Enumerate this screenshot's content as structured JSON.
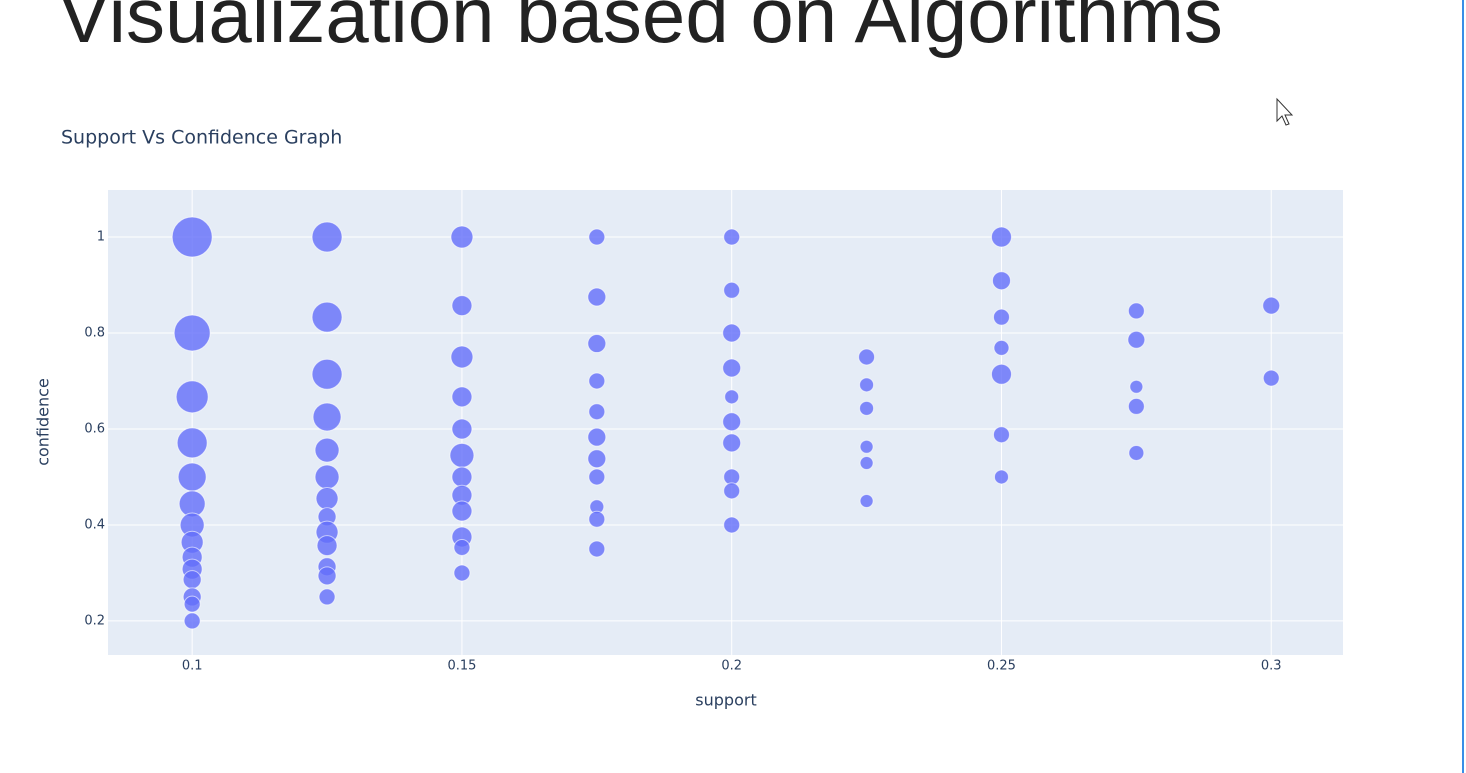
{
  "heading": "Visualization based on Algorithms",
  "chart_data": {
    "type": "scatter",
    "title": "Support Vs Confidence Graph",
    "x_label": "support",
    "y_label": "confidence",
    "color": "#636efa",
    "grid": true,
    "xlim": [
      0.0844,
      0.3133
    ],
    "ylim": [
      0.129,
      1.098
    ],
    "xticks": [
      0.1,
      0.15,
      0.2,
      0.25,
      0.3
    ],
    "yticks": [
      0.2,
      0.4,
      0.6,
      0.8,
      1
    ],
    "x": [
      0.1,
      0.1,
      0.1,
      0.1,
      0.1,
      0.1,
      0.1,
      0.1,
      0.1,
      0.1,
      0.1,
      0.1,
      0.1,
      0.1,
      0.125,
      0.125,
      0.125,
      0.125,
      0.125,
      0.125,
      0.125,
      0.125,
      0.125,
      0.125,
      0.125,
      0.125,
      0.125,
      0.15,
      0.15,
      0.15,
      0.15,
      0.15,
      0.15,
      0.15,
      0.15,
      0.15,
      0.15,
      0.15,
      0.15,
      0.175,
      0.175,
      0.175,
      0.175,
      0.175,
      0.175,
      0.175,
      0.175,
      0.175,
      0.175,
      0.175,
      0.2,
      0.2,
      0.2,
      0.2,
      0.2,
      0.2,
      0.2,
      0.2,
      0.2,
      0.2,
      0.225,
      0.225,
      0.225,
      0.225,
      0.225,
      0.225,
      0.25,
      0.25,
      0.25,
      0.25,
      0.25,
      0.25,
      0.25,
      0.275,
      0.275,
      0.275,
      0.275,
      0.275,
      0.3,
      0.3
    ],
    "y": [
      1.0,
      0.8,
      0.667,
      0.571,
      0.5,
      0.444,
      0.4,
      0.364,
      0.333,
      0.308,
      0.286,
      0.25,
      0.235,
      0.2,
      1.0,
      0.833,
      0.714,
      0.625,
      0.556,
      0.5,
      0.455,
      0.417,
      0.385,
      0.357,
      0.313,
      0.294,
      0.25,
      1.0,
      0.857,
      0.75,
      0.667,
      0.6,
      0.545,
      0.5,
      0.462,
      0.429,
      0.375,
      0.353,
      0.3,
      1.0,
      0.875,
      0.778,
      0.7,
      0.636,
      0.583,
      0.538,
      0.5,
      0.438,
      0.412,
      0.35,
      1.0,
      0.889,
      0.8,
      0.727,
      0.667,
      0.615,
      0.571,
      0.5,
      0.471,
      0.4,
      0.75,
      0.692,
      0.643,
      0.563,
      0.529,
      0.45,
      1.0,
      0.909,
      0.833,
      0.769,
      0.714,
      0.588,
      0.5,
      0.846,
      0.786,
      0.688,
      0.647,
      0.55,
      0.857,
      0.706
    ],
    "sizes": [
      40,
      36,
      32,
      30,
      28,
      26,
      24,
      22,
      20,
      20,
      18,
      18,
      16,
      16,
      30,
      30,
      30,
      28,
      24,
      24,
      22,
      18,
      22,
      20,
      18,
      18,
      16,
      22,
      20,
      22,
      20,
      20,
      24,
      20,
      20,
      20,
      20,
      16,
      16,
      16,
      18,
      18,
      16,
      16,
      18,
      18,
      16,
      14,
      16,
      16,
      16,
      16,
      18,
      18,
      14,
      18,
      18,
      16,
      16,
      16,
      16,
      14,
      14,
      13,
      13,
      13,
      20,
      18,
      16,
      15,
      20,
      16,
      14,
      16,
      17,
      13,
      16,
      15,
      17,
      16
    ]
  }
}
